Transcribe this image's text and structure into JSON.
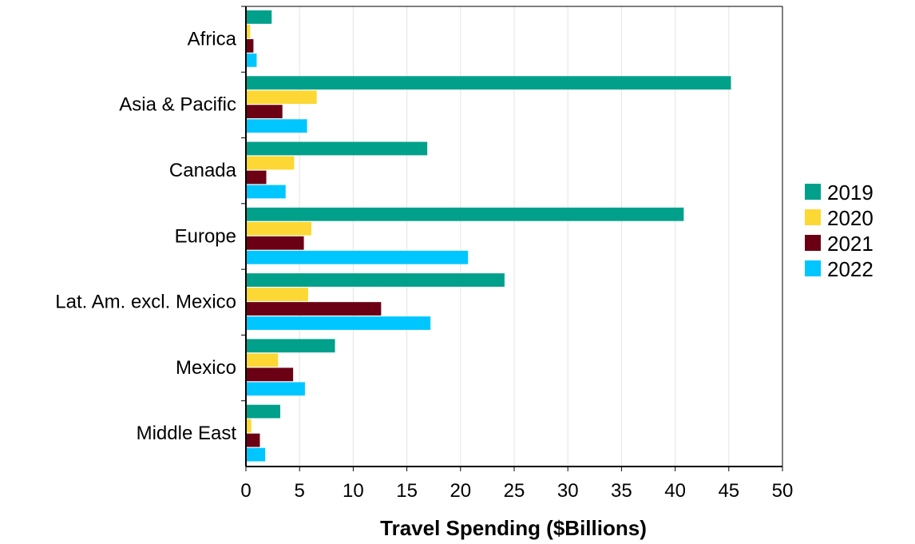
{
  "chart_data": {
    "type": "bar",
    "orientation": "horizontal",
    "title": "",
    "xlabel": "Travel Spending ($Billions)",
    "ylabel": "",
    "xlim": [
      0,
      50
    ],
    "xticks": [
      0,
      5,
      10,
      15,
      20,
      25,
      30,
      35,
      40,
      45,
      50
    ],
    "grid": "vertical",
    "legend_position": "right",
    "categories": [
      "Africa",
      "Asia & Pacific",
      "Canada",
      "Europe",
      "Lat. Am. excl. Mexico",
      "Mexico",
      "Middle East"
    ],
    "series": [
      {
        "name": "2019",
        "color": "#00a08a",
        "values": [
          2.4,
          45.2,
          16.9,
          40.8,
          24.1,
          8.3,
          3.2
        ]
      },
      {
        "name": "2020",
        "color": "#fdd835",
        "values": [
          0.4,
          6.6,
          4.5,
          6.1,
          5.8,
          3.0,
          0.5
        ]
      },
      {
        "name": "2021",
        "color": "#6b0014",
        "values": [
          0.7,
          3.4,
          1.9,
          5.4,
          12.6,
          4.4,
          1.3
        ]
      },
      {
        "name": "2022",
        "color": "#00c6ff",
        "values": [
          1.0,
          5.7,
          3.7,
          20.7,
          17.2,
          5.5,
          1.8
        ]
      }
    ]
  }
}
